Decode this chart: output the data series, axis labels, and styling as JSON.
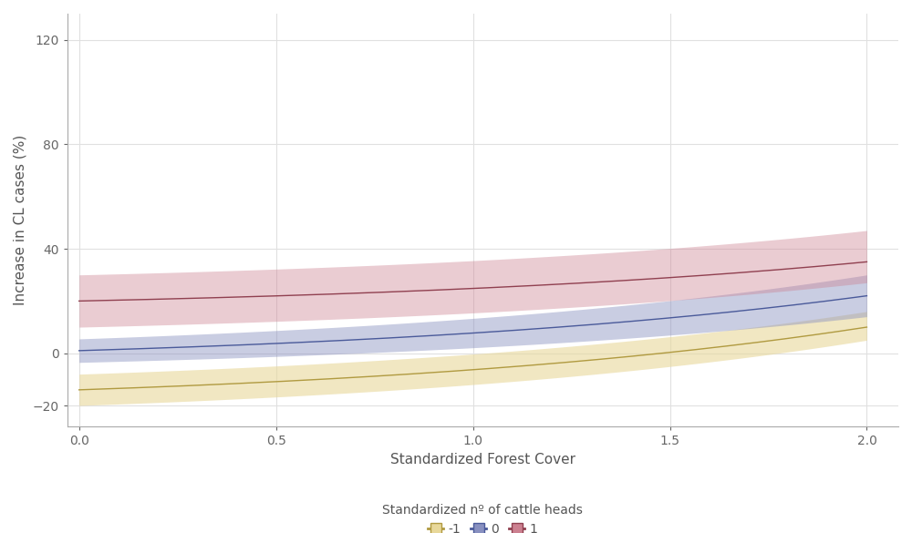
{
  "x_start": 0.0,
  "x_end": 2.0,
  "x_label": "Standardized Forest Cover",
  "y_label": "Increase in CL cases (%)",
  "x_ticks": [
    0.0,
    0.5,
    1.0,
    1.5,
    2.0
  ],
  "y_ticks": [
    -20,
    0,
    40,
    80,
    120
  ],
  "y_lim": [
    -28,
    130
  ],
  "x_lim": [
    -0.03,
    2.08
  ],
  "series": [
    {
      "label": "-1",
      "line_color": "#b09a40",
      "fill_color": "#e8d89a",
      "fill_alpha": 0.6,
      "mean_a": -14.0,
      "mean_b": 10.0,
      "lower_a": -20.0,
      "lower_b": 5.0,
      "upper_a": -8.0,
      "upper_b": 16.0
    },
    {
      "label": "0",
      "line_color": "#4a5a9a",
      "fill_color": "#8890c0",
      "fill_alpha": 0.45,
      "mean_a": 1.0,
      "mean_b": 22.0,
      "lower_a": -3.5,
      "lower_b": 14.0,
      "upper_a": 5.5,
      "upper_b": 30.0
    },
    {
      "label": "1",
      "line_color": "#904050",
      "fill_color": "#cc8090",
      "fill_alpha": 0.4,
      "mean_a": 20.0,
      "mean_b": 35.0,
      "lower_a": 10.0,
      "lower_b": 27.0,
      "upper_a": 30.0,
      "upper_b": 47.0
    }
  ],
  "legend_title": "Standardized nº of cattle heads",
  "background_color": "#ffffff",
  "grid_color": "#e0e0e0",
  "tick_label_fontsize": 10,
  "axis_label_fontsize": 11,
  "legend_fontsize": 10
}
